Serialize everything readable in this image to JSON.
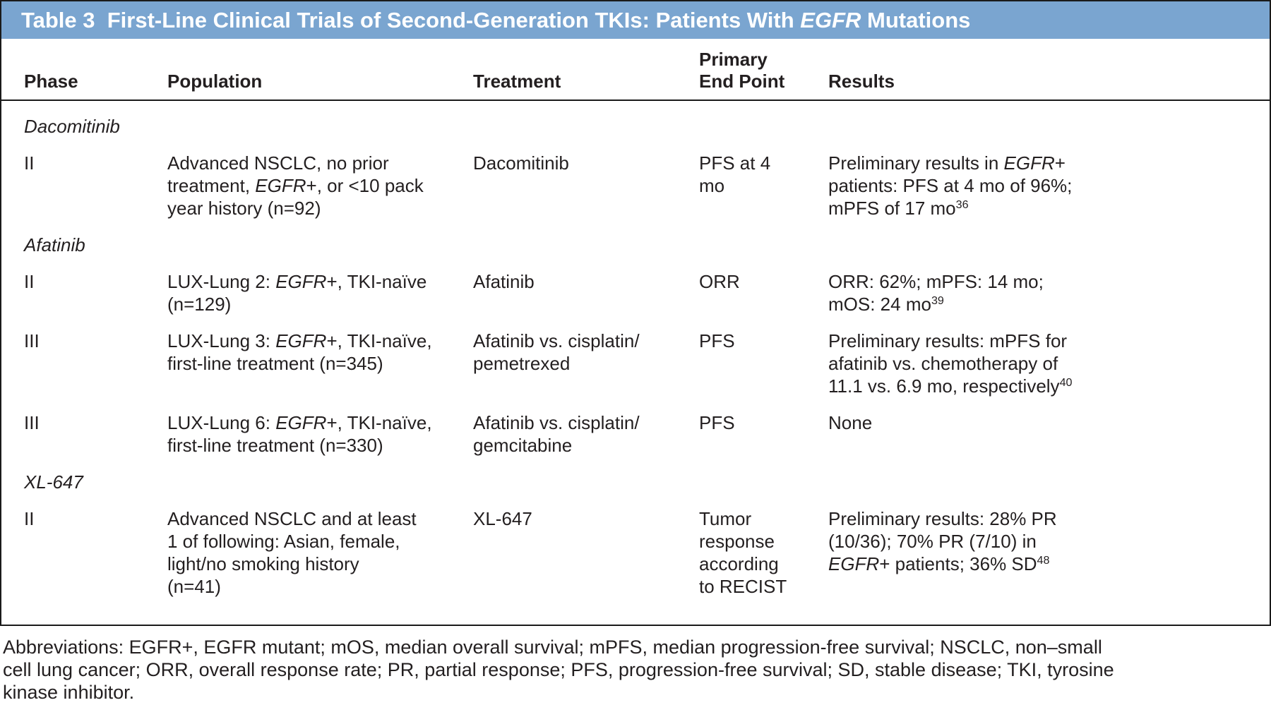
{
  "title": {
    "segments": [
      {
        "t": "Table 3  First-Line Clinical Trials of Second-Generation TKIs: Patients With "
      },
      {
        "t": "EGFR",
        "i": true
      },
      {
        "t": " Mutations"
      }
    ]
  },
  "columns": [
    "Phase",
    "Population",
    "Treatment",
    "Primary\nEnd Point",
    "Results"
  ],
  "sections": [
    {
      "label": "Dacomitinib",
      "rows": [
        {
          "phase": "II",
          "population": [
            {
              "t": "Advanced NSCLC, no prior\ntreatment, "
            },
            {
              "t": "EGFR",
              "i": true
            },
            {
              "t": "+, or <10 pack\nyear history (n=92)"
            }
          ],
          "treatment": [
            {
              "t": "Dacomitinib"
            }
          ],
          "endpoint": [
            {
              "t": "PFS at 4\nmo"
            }
          ],
          "results": [
            {
              "t": "Preliminary results in "
            },
            {
              "t": "EGFR",
              "i": true
            },
            {
              "t": "+\npatients: PFS at 4 mo of 96%;\nmPFS of 17 mo"
            },
            {
              "t": "36",
              "sup": true
            }
          ]
        }
      ]
    },
    {
      "label": "Afatinib",
      "rows": [
        {
          "phase": "II",
          "population": [
            {
              "t": "LUX-Lung 2: "
            },
            {
              "t": "EGFR",
              "i": true
            },
            {
              "t": "+, TKI-naïve\n(n=129)"
            }
          ],
          "treatment": [
            {
              "t": "Afatinib"
            }
          ],
          "endpoint": [
            {
              "t": "ORR"
            }
          ],
          "results": [
            {
              "t": "ORR: 62%; mPFS: 14 mo;\nmOS: 24 mo"
            },
            {
              "t": "39",
              "sup": true
            }
          ]
        },
        {
          "phase": "III",
          "population": [
            {
              "t": "LUX-Lung 3: "
            },
            {
              "t": "EGFR",
              "i": true
            },
            {
              "t": "+, TKI-naïve,\nfirst-line treatment (n=345)"
            }
          ],
          "treatment": [
            {
              "t": "Afatinib vs. cisplatin/\npemetrexed"
            }
          ],
          "endpoint": [
            {
              "t": "PFS"
            }
          ],
          "results": [
            {
              "t": "Preliminary results: mPFS for\nafatinib vs. chemotherapy of\n11.1 vs. 6.9 mo, respectively"
            },
            {
              "t": "40",
              "sup": true
            }
          ]
        },
        {
          "phase": "III",
          "population": [
            {
              "t": "LUX-Lung 6: "
            },
            {
              "t": "EGFR",
              "i": true
            },
            {
              "t": "+, TKI-naïve,\nfirst-line treatment (n=330)"
            }
          ],
          "treatment": [
            {
              "t": "Afatinib vs. cisplatin/\ngemcitabine"
            }
          ],
          "endpoint": [
            {
              "t": "PFS"
            }
          ],
          "results": [
            {
              "t": "None"
            }
          ]
        }
      ]
    },
    {
      "label": "XL-647",
      "rows": [
        {
          "phase": "II",
          "population": [
            {
              "t": "Advanced NSCLC and at least\n1 of following: Asian, female,\nlight/no smoking history\n(n=41)"
            }
          ],
          "treatment": [
            {
              "t": "XL-647"
            }
          ],
          "endpoint": [
            {
              "t": "Tumor\nresponse\naccording\nto RECIST"
            }
          ],
          "results": [
            {
              "t": "Preliminary results: 28% PR\n(10/36); 70% PR (7/10) in\n"
            },
            {
              "t": "EGFR",
              "i": true
            },
            {
              "t": "+ patients; 36% SD"
            },
            {
              "t": "48",
              "sup": true
            }
          ]
        }
      ]
    }
  ],
  "footnote": "Abbreviations: EGFR+, EGFR mutant; mOS, median overall survival; mPFS, median progression-free survival; NSCLC, non–small\ncell lung cancer; ORR, overall response rate; PR, partial response; PFS, progression-free survival; SD, stable disease; TKI, tyrosine\nkinase inhibitor.",
  "colors": {
    "header_bar": "#7aa5d0",
    "text": "#231f20",
    "border": "#1a1a1a",
    "title_text": "#ffffff"
  }
}
